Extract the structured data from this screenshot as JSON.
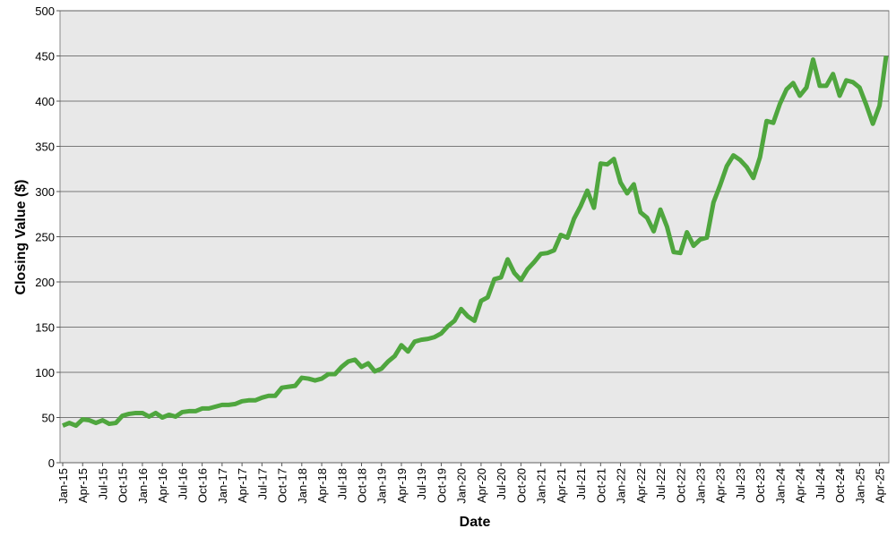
{
  "chart_data": {
    "type": "line",
    "x_label": "Date",
    "y_label": "Closing Value ($)",
    "x": [
      "2015-01",
      "2015-02",
      "2015-03",
      "2015-04",
      "2015-05",
      "2015-06",
      "2015-07",
      "2015-08",
      "2015-09",
      "2015-10",
      "2015-11",
      "2015-12",
      "2016-01",
      "2016-02",
      "2016-03",
      "2016-04",
      "2016-05",
      "2016-06",
      "2016-07",
      "2016-08",
      "2016-09",
      "2016-10",
      "2016-11",
      "2016-12",
      "2017-01",
      "2017-02",
      "2017-03",
      "2017-04",
      "2017-05",
      "2017-06",
      "2017-07",
      "2017-08",
      "2017-09",
      "2017-10",
      "2017-11",
      "2017-12",
      "2018-01",
      "2018-02",
      "2018-03",
      "2018-04",
      "2018-05",
      "2018-06",
      "2018-07",
      "2018-08",
      "2018-09",
      "2018-10",
      "2018-11",
      "2018-12",
      "2019-01",
      "2019-02",
      "2019-03",
      "2019-04",
      "2019-05",
      "2019-06",
      "2019-07",
      "2019-08",
      "2019-09",
      "2019-10",
      "2019-11",
      "2019-12",
      "2020-01",
      "2020-02",
      "2020-03",
      "2020-04",
      "2020-05",
      "2020-06",
      "2020-07",
      "2020-08",
      "2020-09",
      "2020-10",
      "2020-11",
      "2020-12",
      "2021-01",
      "2021-02",
      "2021-03",
      "2021-04",
      "2021-05",
      "2021-06",
      "2021-07",
      "2021-08",
      "2021-09",
      "2021-10",
      "2021-11",
      "2021-12",
      "2022-01",
      "2022-02",
      "2022-03",
      "2022-04",
      "2022-05",
      "2022-06",
      "2022-07",
      "2022-08",
      "2022-09",
      "2022-10",
      "2022-11",
      "2022-12",
      "2023-01",
      "2023-02",
      "2023-03",
      "2023-04",
      "2023-05",
      "2023-06",
      "2023-07",
      "2023-08",
      "2023-09",
      "2023-10",
      "2023-11",
      "2023-12",
      "2024-01",
      "2024-02",
      "2024-03",
      "2024-04",
      "2024-05",
      "2024-06",
      "2024-07",
      "2024-08",
      "2024-09",
      "2024-10",
      "2024-11",
      "2024-12",
      "2025-01",
      "2025-02",
      "2025-03",
      "2025-04",
      "2025-05"
    ],
    "series": [
      {
        "name": "Closing Value",
        "color": "#4fa63e",
        "values": [
          41,
          44,
          41,
          48,
          47,
          44,
          47,
          43,
          44,
          52,
          54,
          55,
          55,
          51,
          55,
          50,
          53,
          51,
          56,
          57,
          57,
          60,
          60,
          62,
          64,
          64,
          65,
          68,
          69,
          69,
          72,
          74,
          74,
          83,
          84,
          85,
          94,
          93,
          91,
          93,
          98,
          98,
          106,
          112,
          114,
          106,
          110,
          101,
          104,
          112,
          118,
          130,
          123,
          134,
          136,
          137,
          139,
          143,
          151,
          157,
          170,
          162,
          157,
          179,
          183,
          203,
          205,
          225,
          210,
          202,
          214,
          222,
          231,
          232,
          235,
          252,
          249,
          270,
          284,
          301,
          282,
          331,
          330,
          336,
          310,
          298,
          308,
          277,
          271,
          256,
          280,
          261,
          233,
          232,
          255,
          240,
          247,
          249,
          288,
          307,
          328,
          340,
          335,
          327,
          315,
          338,
          378,
          376,
          397,
          413,
          420,
          406,
          415,
          446,
          417,
          417,
          430,
          406,
          423,
          421,
          415,
          396,
          375,
          395,
          450
        ]
      }
    ],
    "xlim": [
      "2015-01",
      "2025-05"
    ],
    "xticks": [
      {
        "value": "2015-01",
        "label": "Jan-15"
      },
      {
        "value": "2015-04",
        "label": "Apr-15"
      },
      {
        "value": "2015-07",
        "label": "Jul-15"
      },
      {
        "value": "2015-10",
        "label": "Oct-15"
      },
      {
        "value": "2016-01",
        "label": "Jan-16"
      },
      {
        "value": "2016-04",
        "label": "Apr-16"
      },
      {
        "value": "2016-07",
        "label": "Jul-16"
      },
      {
        "value": "2016-10",
        "label": "Oct-16"
      },
      {
        "value": "2017-01",
        "label": "Jan-17"
      },
      {
        "value": "2017-04",
        "label": "Apr-17"
      },
      {
        "value": "2017-07",
        "label": "Jul-17"
      },
      {
        "value": "2017-10",
        "label": "Oct-17"
      },
      {
        "value": "2018-01",
        "label": "Jan-18"
      },
      {
        "value": "2018-04",
        "label": "Apr-18"
      },
      {
        "value": "2018-07",
        "label": "Jul-18"
      },
      {
        "value": "2018-10",
        "label": "Oct-18"
      },
      {
        "value": "2019-01",
        "label": "Jan-19"
      },
      {
        "value": "2019-04",
        "label": "Apr-19"
      },
      {
        "value": "2019-07",
        "label": "Jul-19"
      },
      {
        "value": "2019-10",
        "label": "Oct-19"
      },
      {
        "value": "2020-01",
        "label": "Jan-20"
      },
      {
        "value": "2020-04",
        "label": "Apr-20"
      },
      {
        "value": "2020-07",
        "label": "Jul-20"
      },
      {
        "value": "2020-10",
        "label": "Oct-20"
      },
      {
        "value": "2021-01",
        "label": "Jan-21"
      },
      {
        "value": "2021-04",
        "label": "Apr-21"
      },
      {
        "value": "2021-07",
        "label": "Jul-21"
      },
      {
        "value": "2021-10",
        "label": "Oct-21"
      },
      {
        "value": "2022-01",
        "label": "Jan-22"
      },
      {
        "value": "2022-04",
        "label": "Apr-22"
      },
      {
        "value": "2022-07",
        "label": "Jul-22"
      },
      {
        "value": "2022-10",
        "label": "Oct-22"
      },
      {
        "value": "2023-01",
        "label": "Jan-23"
      },
      {
        "value": "2023-04",
        "label": "Apr-23"
      },
      {
        "value": "2023-07",
        "label": "Jul-23"
      },
      {
        "value": "2023-10",
        "label": "Oct-23"
      },
      {
        "value": "2024-01",
        "label": "Jan-24"
      },
      {
        "value": "2024-04",
        "label": "Apr-24"
      },
      {
        "value": "2024-07",
        "label": "Jul-24"
      },
      {
        "value": "2024-10",
        "label": "Oct-24"
      },
      {
        "value": "2025-01",
        "label": "Jan-25"
      },
      {
        "value": "2025-04",
        "label": "Apr-25"
      }
    ],
    "ylim": [
      0,
      500
    ],
    "yticks": [
      0,
      50,
      100,
      150,
      200,
      250,
      300,
      350,
      400,
      450,
      500
    ],
    "grid": true
  }
}
